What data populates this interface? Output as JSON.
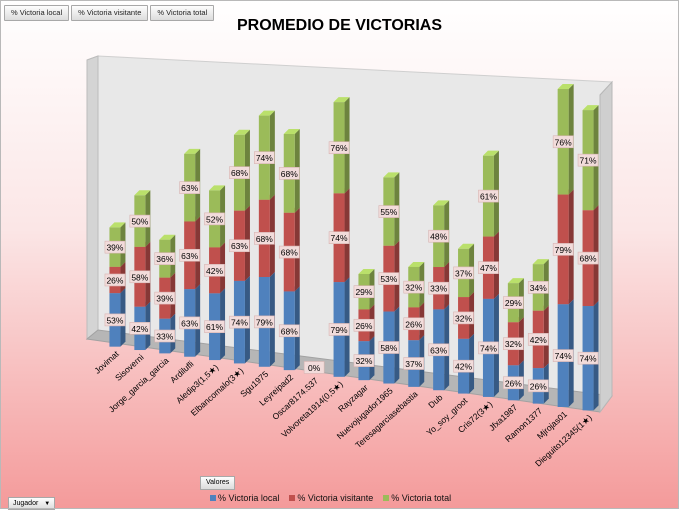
{
  "field_buttons": [
    "% Victoria local",
    "% Victoria visitante",
    "% Victoria total"
  ],
  "valores_button": "Valores",
  "jugador_button": "Jugador",
  "colors": {
    "local": "#4f81bd",
    "visitante": "#c0504d",
    "total": "#9bbb59"
  },
  "chart_data": {
    "type": "bar",
    "stacked": true,
    "style": "3d-column",
    "title": "PROMEDIO DE VICTORIAS",
    "xlabel": "",
    "ylabel": "",
    "legend_position": "bottom",
    "categories": [
      "Jovimat",
      "Sisoverni",
      "Jorge_garcia_garcia",
      "Ardilufli",
      "Aledip3(1,5★)",
      "Elbancomalo(3★)",
      "Sgu1975",
      "Leyreipad2",
      "Oscar8174.537",
      "Volvoreta1914(0,5★)",
      "Rayzagar",
      "Nuevojugador1965",
      "Teresagarciasebastia",
      "Dub",
      "Yo_soy_groot",
      "Cris72(3★)",
      "Jfxa1987",
      "Ramon1377",
      "Mjrojas01",
      "Dieguito12345(1★)"
    ],
    "series": [
      {
        "name": "% Victoria local",
        "values": [
          53,
          42,
          33,
          63,
          61,
          74,
          79,
          68,
          0,
          79,
          32,
          58,
          37,
          63,
          42,
          74,
          26,
          26,
          74,
          74
        ],
        "labels": [
          "53%",
          "42%",
          "33%",
          "63%",
          "61%",
          "74%",
          "79%",
          "68%",
          "0%",
          "79%",
          "32%",
          "58%",
          "37%",
          "63%",
          "42%",
          "74%",
          "26%",
          "26%",
          "74%",
          "74%"
        ]
      },
      {
        "name": "% Victoria visitante",
        "values": [
          26,
          58,
          39,
          63,
          42,
          63,
          68,
          68,
          0,
          74,
          26,
          53,
          26,
          33,
          32,
          47,
          32,
          42,
          79,
          68
        ],
        "labels": [
          "26%",
          "58%",
          "39%",
          "63%",
          "42%",
          "63%",
          "68%",
          "68%",
          "",
          "74%",
          "26%",
          "53%",
          "26%",
          "33%",
          "32%",
          "47%",
          "32%",
          "42%",
          "79%",
          "68%"
        ]
      },
      {
        "name": "% Victoria total",
        "values": [
          39,
          50,
          36,
          63,
          52,
          68,
          74,
          68,
          0,
          76,
          29,
          55,
          32,
          48,
          37,
          61,
          29,
          34,
          76,
          71
        ],
        "labels": [
          "39%",
          "50%",
          "36%",
          "63%",
          "52%",
          "68%",
          "74%",
          "68%",
          "",
          "76%",
          "29%",
          "55%",
          "32%",
          "48%",
          "37%",
          "61%",
          "29%",
          "34%",
          "76%",
          "71%"
        ]
      }
    ]
  }
}
